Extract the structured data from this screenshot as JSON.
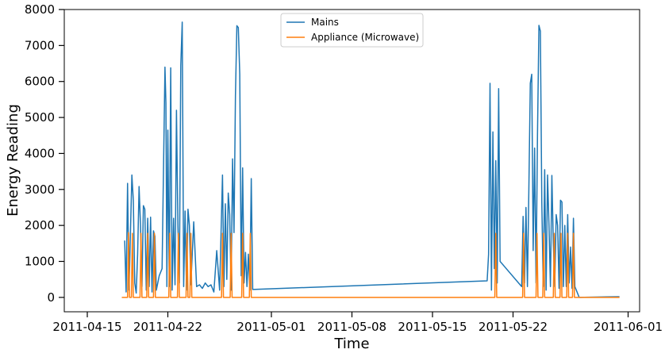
{
  "chart_data": {
    "type": "line",
    "title": "",
    "xlabel": "Time",
    "ylabel": "Energy Reading",
    "x_axis_type": "date",
    "xlim": [
      "2011-04-13",
      "2011-06-02"
    ],
    "ylim": [
      -400,
      8000
    ],
    "x_ticks": [
      "2011-04-15",
      "2011-04-22",
      "2011-05-01",
      "2011-05-08",
      "2011-05-15",
      "2011-05-22",
      "2011-06-01"
    ],
    "y_ticks": [
      0,
      1000,
      2000,
      3000,
      4000,
      5000,
      6000,
      7000,
      8000
    ],
    "grid": false,
    "legend_position": "top-center",
    "series": [
      {
        "name": "Mains",
        "color": "#1f77b4",
        "points": [
          [
            "2011-04-18 06:00",
            1580
          ],
          [
            "2011-04-18 09:00",
            150
          ],
          [
            "2011-04-18 12:00",
            3170
          ],
          [
            "2011-04-18 15:00",
            200
          ],
          [
            "2011-04-18 18:00",
            1800
          ],
          [
            "2011-04-18 21:00",
            3400
          ],
          [
            "2011-04-19 00:00",
            2700
          ],
          [
            "2011-04-19 03:00",
            400
          ],
          [
            "2011-04-19 06:00",
            120
          ],
          [
            "2011-04-19 09:00",
            1200
          ],
          [
            "2011-04-19 12:00",
            3080
          ],
          [
            "2011-04-19 15:00",
            2000
          ],
          [
            "2011-04-19 18:00",
            300
          ],
          [
            "2011-04-19 21:00",
            2550
          ],
          [
            "2011-04-20 00:00",
            2450
          ],
          [
            "2011-04-20 03:00",
            200
          ],
          [
            "2011-04-20 06:00",
            2200
          ],
          [
            "2011-04-20 09:00",
            300
          ],
          [
            "2011-04-20 12:00",
            2230
          ],
          [
            "2011-04-20 15:00",
            150
          ],
          [
            "2011-04-20 18:00",
            1850
          ],
          [
            "2011-04-20 21:00",
            1700
          ],
          [
            "2011-04-21 00:00",
            200
          ],
          [
            "2011-04-21 06:00",
            600
          ],
          [
            "2011-04-21 12:00",
            800
          ],
          [
            "2011-04-21 18:00",
            6400
          ],
          [
            "2011-04-21 20:00",
            5400
          ],
          [
            "2011-04-21 22:00",
            300
          ],
          [
            "2011-04-22 00:00",
            4650
          ],
          [
            "2011-04-22 03:00",
            300
          ],
          [
            "2011-04-22 06:00",
            6380
          ],
          [
            "2011-04-22 09:00",
            200
          ],
          [
            "2011-04-22 12:00",
            2200
          ],
          [
            "2011-04-22 15:00",
            350
          ],
          [
            "2011-04-22 18:00",
            5200
          ],
          [
            "2011-04-22 21:00",
            2000
          ],
          [
            "2011-04-23 00:00",
            400
          ],
          [
            "2011-04-23 03:00",
            6450
          ],
          [
            "2011-04-23 06:00",
            7650
          ],
          [
            "2011-04-23 09:00",
            300
          ],
          [
            "2011-04-23 12:00",
            2400
          ],
          [
            "2011-04-23 15:00",
            200
          ],
          [
            "2011-04-23 18:00",
            2450
          ],
          [
            "2011-04-23 21:00",
            2000
          ],
          [
            "2011-04-24 00:00",
            350
          ],
          [
            "2011-04-24 06:00",
            2100
          ],
          [
            "2011-04-24 12:00",
            300
          ],
          [
            "2011-04-24 18:00",
            350
          ],
          [
            "2011-04-25 00:00",
            250
          ],
          [
            "2011-04-25 06:00",
            400
          ],
          [
            "2011-04-25 12:00",
            300
          ],
          [
            "2011-04-25 18:00",
            350
          ],
          [
            "2011-04-26 00:00",
            150
          ],
          [
            "2011-04-26 06:00",
            1300
          ],
          [
            "2011-04-26 12:00",
            200
          ],
          [
            "2011-04-26 18:00",
            3400
          ],
          [
            "2011-04-26 21:00",
            300
          ],
          [
            "2011-04-27 00:00",
            2600
          ],
          [
            "2011-04-27 03:00",
            500
          ],
          [
            "2011-04-27 06:00",
            2900
          ],
          [
            "2011-04-27 09:00",
            2300
          ],
          [
            "2011-04-27 12:00",
            200
          ],
          [
            "2011-04-27 15:00",
            3850
          ],
          [
            "2011-04-27 18:00",
            1800
          ],
          [
            "2011-04-27 21:00",
            5600
          ],
          [
            "2011-04-28 00:00",
            7550
          ],
          [
            "2011-04-28 03:00",
            7500
          ],
          [
            "2011-04-28 06:00",
            6200
          ],
          [
            "2011-04-28 09:00",
            600
          ],
          [
            "2011-04-28 12:00",
            3600
          ],
          [
            "2011-04-28 15:00",
            400
          ],
          [
            "2011-04-28 18:00",
            1250
          ],
          [
            "2011-04-28 21:00",
            300
          ],
          [
            "2011-04-29 00:00",
            1200
          ],
          [
            "2011-04-29 03:00",
            200
          ],
          [
            "2011-04-29 06:00",
            3300
          ],
          [
            "2011-04-29 09:00",
            220
          ],
          [
            "2011-05-19 18:00",
            460
          ],
          [
            "2011-05-19 21:00",
            1200
          ],
          [
            "2011-05-20 00:00",
            5950
          ],
          [
            "2011-05-20 03:00",
            200
          ],
          [
            "2011-05-20 06:00",
            4600
          ],
          [
            "2011-05-20 09:00",
            800
          ],
          [
            "2011-05-20 12:00",
            3800
          ],
          [
            "2011-05-20 15:00",
            400
          ],
          [
            "2011-05-20 18:00",
            5800
          ],
          [
            "2011-05-20 21:00",
            1000
          ],
          [
            "2011-05-22 18:00",
            300
          ],
          [
            "2011-05-22 21:00",
            2250
          ],
          [
            "2011-05-23 00:00",
            400
          ],
          [
            "2011-05-23 03:00",
            2500
          ],
          [
            "2011-05-23 06:00",
            300
          ],
          [
            "2011-05-23 09:00",
            3000
          ],
          [
            "2011-05-23 12:00",
            5950
          ],
          [
            "2011-05-23 15:00",
            6200
          ],
          [
            "2011-05-23 18:00",
            1300
          ],
          [
            "2011-05-23 21:00",
            4150
          ],
          [
            "2011-05-24 00:00",
            400
          ],
          [
            "2011-05-24 03:00",
            4500
          ],
          [
            "2011-05-24 06:00",
            7560
          ],
          [
            "2011-05-24 09:00",
            7400
          ],
          [
            "2011-05-24 12:00",
            2650
          ],
          [
            "2011-05-24 15:00",
            300
          ],
          [
            "2011-05-24 18:00",
            3550
          ],
          [
            "2011-05-24 21:00",
            200
          ],
          [
            "2011-05-25 00:00",
            3400
          ],
          [
            "2011-05-25 03:00",
            2000
          ],
          [
            "2011-05-25 06:00",
            300
          ],
          [
            "2011-05-25 09:00",
            3390
          ],
          [
            "2011-05-25 12:00",
            1500
          ],
          [
            "2011-05-25 15:00",
            300
          ],
          [
            "2011-05-25 18:00",
            2300
          ],
          [
            "2011-05-25 21:00",
            2000
          ],
          [
            "2011-05-26 00:00",
            250
          ],
          [
            "2011-05-26 03:00",
            2700
          ],
          [
            "2011-05-26 06:00",
            2650
          ],
          [
            "2011-05-26 09:00",
            300
          ],
          [
            "2011-05-26 12:00",
            2000
          ],
          [
            "2011-05-26 15:00",
            300
          ],
          [
            "2011-05-26 18:00",
            2300
          ],
          [
            "2011-05-26 21:00",
            400
          ],
          [
            "2011-05-27 00:00",
            1400
          ],
          [
            "2011-05-27 03:00",
            250
          ],
          [
            "2011-05-27 06:00",
            2200
          ],
          [
            "2011-05-27 09:00",
            300
          ],
          [
            "2011-05-27 12:00",
            200
          ],
          [
            "2011-05-27 18:00",
            0
          ],
          [
            "2011-05-31 06:00",
            20
          ]
        ]
      },
      {
        "name": "Appliance (Microwave)",
        "color": "#ff7f0e",
        "points": [
          [
            "2011-04-18 00:00",
            0
          ],
          [
            "2011-04-18 12:00",
            0
          ],
          [
            "2011-04-18 14:00",
            1800
          ],
          [
            "2011-04-18 16:00",
            0
          ],
          [
            "2011-04-18 20:00",
            0
          ],
          [
            "2011-04-18 22:00",
            1780
          ],
          [
            "2011-04-19 00:00",
            0
          ],
          [
            "2011-04-19 14:00",
            0
          ],
          [
            "2011-04-19 16:00",
            1780
          ],
          [
            "2011-04-19 18:00",
            0
          ],
          [
            "2011-04-20 04:00",
            0
          ],
          [
            "2011-04-20 06:00",
            1780
          ],
          [
            "2011-04-20 08:00",
            0
          ],
          [
            "2011-04-20 18:00",
            0
          ],
          [
            "2011-04-20 20:00",
            1780
          ],
          [
            "2011-04-20 22:00",
            0
          ],
          [
            "2011-04-22 02:00",
            0
          ],
          [
            "2011-04-22 04:00",
            1780
          ],
          [
            "2011-04-22 06:00",
            0
          ],
          [
            "2011-04-22 20:00",
            0
          ],
          [
            "2011-04-22 22:00",
            1780
          ],
          [
            "2011-04-23 00:00",
            0
          ],
          [
            "2011-04-23 14:00",
            0
          ],
          [
            "2011-04-23 16:00",
            1780
          ],
          [
            "2011-04-23 18:00",
            0
          ],
          [
            "2011-04-23 22:00",
            0
          ],
          [
            "2011-04-24 00:00",
            1780
          ],
          [
            "2011-04-24 02:00",
            0
          ],
          [
            "2011-04-26 16:00",
            0
          ],
          [
            "2011-04-26 18:00",
            1780
          ],
          [
            "2011-04-26 20:00",
            0
          ],
          [
            "2011-04-27 10:00",
            0
          ],
          [
            "2011-04-27 12:00",
            1780
          ],
          [
            "2011-04-27 14:00",
            0
          ],
          [
            "2011-04-28 10:00",
            0
          ],
          [
            "2011-04-28 12:00",
            1780
          ],
          [
            "2011-04-28 14:00",
            0
          ],
          [
            "2011-04-29 02:00",
            0
          ],
          [
            "2011-04-29 04:00",
            1780
          ],
          [
            "2011-04-29 06:00",
            0
          ],
          [
            "2011-05-20 10:00",
            0
          ],
          [
            "2011-05-20 12:00",
            1780
          ],
          [
            "2011-05-20 14:00",
            0
          ],
          [
            "2011-05-22 20:00",
            0
          ],
          [
            "2011-05-22 22:00",
            1780
          ],
          [
            "2011-05-23 00:00",
            0
          ],
          [
            "2011-05-24 00:00",
            0
          ],
          [
            "2011-05-24 02:00",
            1780
          ],
          [
            "2011-05-24 04:00",
            0
          ],
          [
            "2011-05-24 14:00",
            0
          ],
          [
            "2011-05-24 16:00",
            1780
          ],
          [
            "2011-05-24 18:00",
            0
          ],
          [
            "2011-05-25 12:00",
            0
          ],
          [
            "2011-05-25 14:00",
            1780
          ],
          [
            "2011-05-25 16:00",
            0
          ],
          [
            "2011-05-26 02:00",
            0
          ],
          [
            "2011-05-26 04:00",
            1780
          ],
          [
            "2011-05-26 06:00",
            0
          ],
          [
            "2011-05-26 16:00",
            0
          ],
          [
            "2011-05-26 18:00",
            1780
          ],
          [
            "2011-05-26 20:00",
            0
          ],
          [
            "2011-05-27 04:00",
            0
          ],
          [
            "2011-05-27 06:00",
            1780
          ],
          [
            "2011-05-27 08:00",
            0
          ],
          [
            "2011-05-31 06:00",
            0
          ]
        ]
      }
    ]
  }
}
